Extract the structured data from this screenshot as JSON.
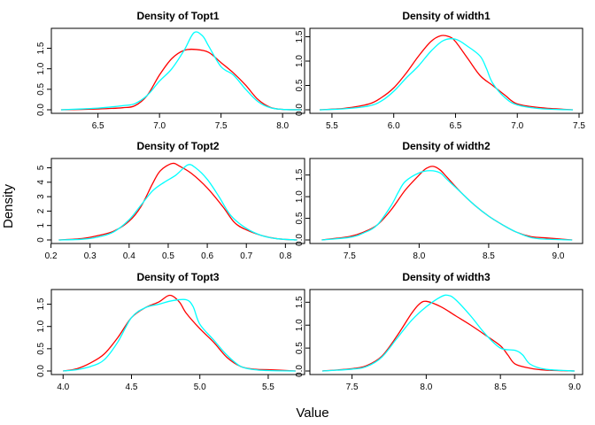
{
  "colors": {
    "series_a": "#ff0000",
    "series_b": "#00ffff"
  },
  "labels": {
    "xlabel": "Value",
    "ylabel": "Density"
  },
  "chart_data": [
    {
      "type": "line",
      "title": "Density of Topt1",
      "xlim": [
        6.15,
        8.15
      ],
      "ylim": [
        0,
        1.9
      ],
      "xticks": [
        6.5,
        7.0,
        7.5,
        8.0
      ],
      "xtick_labels": [
        "6.5",
        "7.0",
        "7.5",
        "8.0"
      ],
      "yticks": [
        0,
        0.5,
        1.0,
        1.5
      ],
      "ytick_labels": [
        "0.0",
        "0.5",
        "1.0",
        "1.5"
      ],
      "series": [
        {
          "color": "#ff0000",
          "x": [
            6.2,
            6.5,
            6.7,
            6.8,
            6.9,
            7.0,
            7.1,
            7.2,
            7.3,
            7.4,
            7.5,
            7.6,
            7.7,
            7.8,
            7.9,
            8.0,
            8.15
          ],
          "y": [
            0.0,
            0.02,
            0.05,
            0.1,
            0.35,
            0.85,
            1.25,
            1.45,
            1.47,
            1.4,
            1.15,
            0.9,
            0.6,
            0.25,
            0.06,
            0.01,
            0.0
          ]
        },
        {
          "color": "#00ffff",
          "x": [
            6.2,
            6.5,
            6.7,
            6.8,
            6.9,
            7.0,
            7.1,
            7.2,
            7.28,
            7.35,
            7.4,
            7.5,
            7.6,
            7.7,
            7.8,
            7.9,
            8.0,
            8.15
          ],
          "y": [
            0.0,
            0.04,
            0.1,
            0.15,
            0.35,
            0.7,
            1.0,
            1.45,
            1.88,
            1.8,
            1.55,
            1.05,
            0.85,
            0.5,
            0.2,
            0.05,
            0.01,
            0.0
          ]
        }
      ]
    },
    {
      "type": "line",
      "title": "Density of width1",
      "xlim": [
        5.35,
        7.5
      ],
      "ylim": [
        0,
        1.6
      ],
      "xticks": [
        5.5,
        6.0,
        6.5,
        7.0,
        7.5
      ],
      "xtick_labels": [
        "5.5",
        "6.0",
        "6.5",
        "7.0",
        "7.5"
      ],
      "yticks": [
        0,
        0.5,
        1.0,
        1.5
      ],
      "ytick_labels": [
        "0.0",
        "0.5",
        "1.0",
        "1.5"
      ],
      "series": [
        {
          "color": "#ff0000",
          "x": [
            5.4,
            5.6,
            5.8,
            5.9,
            6.0,
            6.1,
            6.2,
            6.3,
            6.38,
            6.45,
            6.5,
            6.6,
            6.7,
            6.8,
            6.9,
            7.0,
            7.2,
            7.45
          ],
          "y": [
            0.0,
            0.03,
            0.12,
            0.25,
            0.45,
            0.75,
            1.1,
            1.4,
            1.52,
            1.5,
            1.4,
            1.05,
            0.7,
            0.5,
            0.3,
            0.12,
            0.04,
            0.0
          ]
        },
        {
          "color": "#00ffff",
          "x": [
            5.4,
            5.6,
            5.8,
            5.9,
            6.0,
            6.1,
            6.2,
            6.3,
            6.4,
            6.5,
            6.6,
            6.7,
            6.75,
            6.8,
            6.9,
            7.0,
            7.2,
            7.45
          ],
          "y": [
            0.0,
            0.02,
            0.08,
            0.18,
            0.38,
            0.65,
            0.9,
            1.2,
            1.42,
            1.45,
            1.3,
            1.1,
            0.85,
            0.55,
            0.25,
            0.1,
            0.02,
            0.0
          ]
        }
      ]
    },
    {
      "type": "line",
      "title": "Density of Topt2",
      "xlim": [
        0.21,
        0.84
      ],
      "ylim": [
        0,
        5.4
      ],
      "xticks": [
        0.2,
        0.3,
        0.4,
        0.5,
        0.6,
        0.7,
        0.8
      ],
      "xtick_labels": [
        "0.2",
        "0.3",
        "0.4",
        "0.5",
        "0.6",
        "0.7",
        "0.8"
      ],
      "yticks": [
        0,
        1,
        2,
        3,
        4,
        5
      ],
      "ytick_labels": [
        "0",
        "1",
        "2",
        "3",
        "4",
        "5"
      ],
      "series": [
        {
          "color": "#ff0000",
          "x": [
            0.22,
            0.28,
            0.32,
            0.36,
            0.4,
            0.43,
            0.46,
            0.48,
            0.51,
            0.53,
            0.56,
            0.6,
            0.64,
            0.67,
            0.7,
            0.74,
            0.78,
            0.83
          ],
          "y": [
            0.0,
            0.1,
            0.3,
            0.6,
            1.3,
            2.3,
            3.9,
            4.8,
            5.3,
            5.1,
            4.6,
            3.6,
            2.3,
            1.2,
            0.7,
            0.3,
            0.08,
            0.0
          ]
        },
        {
          "color": "#00ffff",
          "x": [
            0.22,
            0.28,
            0.32,
            0.36,
            0.4,
            0.43,
            0.46,
            0.49,
            0.52,
            0.55,
            0.57,
            0.6,
            0.63,
            0.66,
            0.7,
            0.74,
            0.78,
            0.83
          ],
          "y": [
            0.0,
            0.05,
            0.2,
            0.55,
            1.4,
            2.4,
            3.4,
            4.0,
            4.5,
            5.2,
            5.0,
            4.2,
            3.0,
            1.7,
            0.8,
            0.3,
            0.08,
            0.0
          ]
        }
      ]
    },
    {
      "type": "line",
      "title": "Density of width2",
      "xlim": [
        7.24,
        9.15
      ],
      "ylim": [
        0,
        1.8
      ],
      "xticks": [
        7.5,
        8.0,
        8.5,
        9.0
      ],
      "xtick_labels": [
        "7.5",
        "8.0",
        "8.5",
        "9.0"
      ],
      "yticks": [
        0,
        0.5,
        1.0,
        1.5
      ],
      "ytick_labels": [
        "0.0",
        "0.5",
        "1.0",
        "1.5"
      ],
      "series": [
        {
          "color": "#ff0000",
          "x": [
            7.3,
            7.5,
            7.6,
            7.7,
            7.8,
            7.9,
            8.0,
            8.05,
            8.1,
            8.15,
            8.2,
            8.3,
            8.4,
            8.5,
            8.6,
            8.7,
            8.8,
            8.9,
            9.1
          ],
          "y": [
            0.0,
            0.08,
            0.18,
            0.35,
            0.7,
            1.15,
            1.5,
            1.65,
            1.7,
            1.62,
            1.45,
            1.1,
            0.8,
            0.55,
            0.35,
            0.18,
            0.08,
            0.05,
            0.0
          ]
        },
        {
          "color": "#00ffff",
          "x": [
            7.3,
            7.5,
            7.6,
            7.7,
            7.8,
            7.85,
            7.9,
            8.0,
            8.08,
            8.15,
            8.2,
            8.3,
            8.4,
            8.5,
            8.6,
            8.7,
            8.8,
            8.9,
            9.1
          ],
          "y": [
            0.0,
            0.06,
            0.16,
            0.35,
            0.8,
            1.1,
            1.35,
            1.55,
            1.6,
            1.55,
            1.4,
            1.1,
            0.8,
            0.55,
            0.35,
            0.18,
            0.06,
            0.02,
            0.0
          ]
        }
      ]
    },
    {
      "type": "line",
      "title": "Density of Topt3",
      "xlim": [
        3.94,
        5.74
      ],
      "ylim": [
        0,
        1.75
      ],
      "xticks": [
        4.0,
        4.5,
        5.0,
        5.5
      ],
      "xtick_labels": [
        "4.0",
        "4.5",
        "5.0",
        "5.5"
      ],
      "yticks": [
        0,
        0.5,
        1.0,
        1.5
      ],
      "ytick_labels": [
        "0.0",
        "0.5",
        "1.0",
        "1.5"
      ],
      "series": [
        {
          "color": "#ff0000",
          "x": [
            4.0,
            4.1,
            4.2,
            4.3,
            4.4,
            4.5,
            4.6,
            4.7,
            4.78,
            4.85,
            4.9,
            5.0,
            5.1,
            5.2,
            5.3,
            5.4,
            5.5,
            5.7
          ],
          "y": [
            0.0,
            0.05,
            0.18,
            0.38,
            0.75,
            1.2,
            1.42,
            1.55,
            1.7,
            1.55,
            1.3,
            0.95,
            0.65,
            0.3,
            0.1,
            0.04,
            0.03,
            0.0
          ]
        },
        {
          "color": "#00ffff",
          "x": [
            4.0,
            4.1,
            4.2,
            4.3,
            4.4,
            4.5,
            4.6,
            4.7,
            4.8,
            4.9,
            4.95,
            5.0,
            5.1,
            5.2,
            5.3,
            5.4,
            5.5,
            5.7
          ],
          "y": [
            0.0,
            0.03,
            0.1,
            0.25,
            0.65,
            1.2,
            1.42,
            1.5,
            1.58,
            1.6,
            1.45,
            1.05,
            0.7,
            0.35,
            0.1,
            0.03,
            0.01,
            0.0
          ]
        }
      ]
    },
    {
      "type": "line",
      "title": "Density of width3",
      "xlim": [
        7.24,
        9.03
      ],
      "ylim": [
        0,
        1.7
      ],
      "xticks": [
        7.5,
        8.0,
        8.5,
        9.0
      ],
      "xtick_labels": [
        "7.5",
        "8.0",
        "8.5",
        "9.0"
      ],
      "yticks": [
        0,
        0.5,
        1.0,
        1.5
      ],
      "ytick_labels": [
        "0.0",
        "0.5",
        "1.0",
        "1.5"
      ],
      "series": [
        {
          "color": "#ff0000",
          "x": [
            7.3,
            7.5,
            7.6,
            7.7,
            7.8,
            7.9,
            7.95,
            8.0,
            8.1,
            8.2,
            8.3,
            8.4,
            8.5,
            8.55,
            8.6,
            8.7,
            8.8,
            9.0
          ],
          "y": [
            0.0,
            0.05,
            0.12,
            0.32,
            0.75,
            1.25,
            1.45,
            1.52,
            1.4,
            1.2,
            1.0,
            0.78,
            0.55,
            0.35,
            0.15,
            0.06,
            0.02,
            0.0
          ]
        },
        {
          "color": "#00ffff",
          "x": [
            7.3,
            7.5,
            7.6,
            7.7,
            7.8,
            7.9,
            8.0,
            8.1,
            8.15,
            8.2,
            8.3,
            8.4,
            8.5,
            8.6,
            8.65,
            8.7,
            8.8,
            9.0
          ],
          "y": [
            0.0,
            0.04,
            0.1,
            0.3,
            0.7,
            1.1,
            1.4,
            1.62,
            1.65,
            1.55,
            1.2,
            0.8,
            0.5,
            0.45,
            0.35,
            0.15,
            0.04,
            0.0
          ]
        }
      ]
    }
  ]
}
